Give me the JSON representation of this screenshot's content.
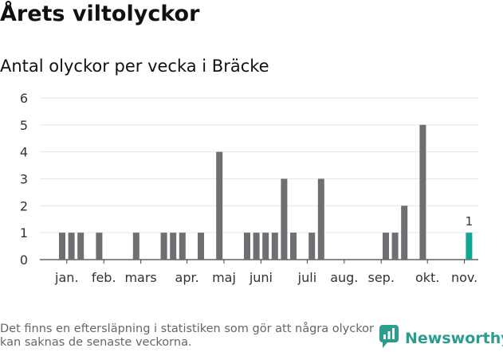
{
  "header": {
    "title": "Årets viltolyckor",
    "subtitle": "Antal olyckor per vecka i Bräcke"
  },
  "footer": {
    "note": "Det finns en eftersläpning i statistiken som gör att några olyckor kan saknas de senaste veckorna.",
    "brand": "Newsworthy"
  },
  "colors": {
    "bar": "#6e6e73",
    "highlight": "#12a594",
    "brand": "#2a9d8f"
  },
  "chart_data": {
    "type": "bar",
    "title": "Antal olyckor per vecka i Bräcke",
    "xlabel": "",
    "ylabel": "",
    "ylim": [
      0,
      6
    ],
    "yticks": [
      0,
      1,
      2,
      3,
      4,
      5,
      6
    ],
    "grid": true,
    "month_labels": [
      "jan.",
      "feb.",
      "mars",
      "apr.",
      "maj",
      "juni",
      "juli",
      "aug.",
      "sep.",
      "okt.",
      "nov."
    ],
    "month_label_weeks": [
      1.5,
      5.5,
      9.5,
      14.5,
      18.5,
      22.5,
      27.5,
      31.5,
      35.5,
      40.5,
      44.5
    ],
    "weeks": [
      1,
      2,
      3,
      4,
      5,
      6,
      7,
      8,
      9,
      10,
      11,
      12,
      13,
      14,
      15,
      16,
      17,
      18,
      19,
      20,
      21,
      22,
      23,
      24,
      25,
      26,
      27,
      28,
      29,
      30,
      31,
      32,
      33,
      34,
      35,
      36,
      37,
      38,
      39,
      40,
      41,
      42,
      43,
      44,
      45
    ],
    "values": [
      1,
      1,
      1,
      0,
      1,
      0,
      0,
      0,
      1,
      0,
      0,
      1,
      1,
      1,
      0,
      1,
      0,
      4,
      0,
      0,
      1,
      1,
      1,
      1,
      3,
      1,
      0,
      1,
      3,
      0,
      0,
      0,
      0,
      0,
      0,
      1,
      1,
      2,
      0,
      5,
      0,
      0,
      0,
      0,
      1
    ],
    "highlight_week": 45,
    "highlight_label": "1"
  }
}
